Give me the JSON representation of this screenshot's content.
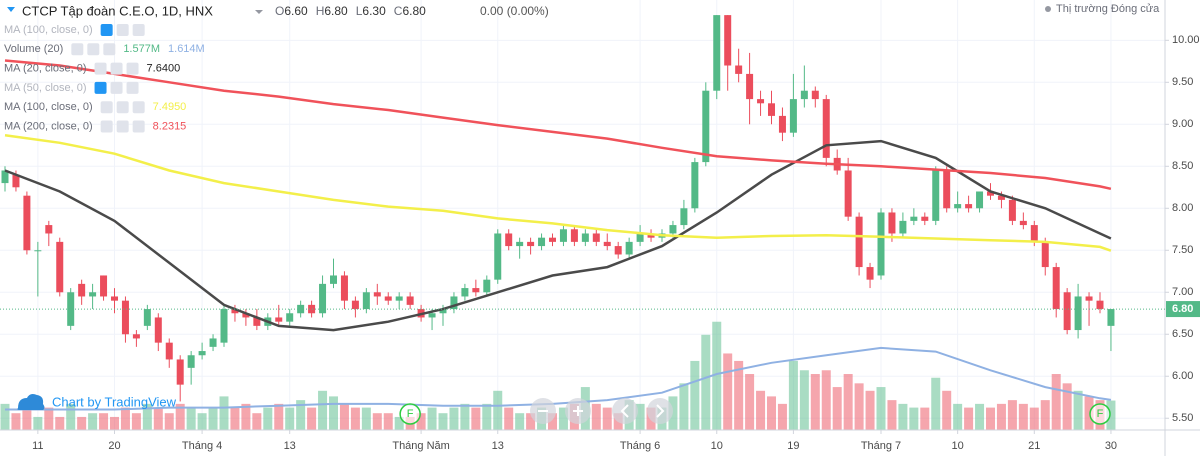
{
  "chart_data": {
    "type": "candlestick",
    "title": "CTCP Tập đoàn C.E.O, 1D, HNX",
    "quote": [
      {
        "label": "O",
        "value": "6.60"
      },
      {
        "label": "H",
        "value": "6.80"
      },
      {
        "label": "L",
        "value": "6.30"
      },
      {
        "label": "C",
        "value": "6.80"
      }
    ],
    "change": "0.00 (0.00%)",
    "status": "Thị trường Đóng cửa",
    "branding": "Chart by TradingView",
    "up_color": "#53b987",
    "down_color": "#eb4d5c",
    "open": [
      8.3,
      8.4,
      8.15,
      7.5,
      7.8,
      7.6,
      6.6,
      7.1,
      6.95,
      7.2,
      6.95,
      6.9,
      6.5,
      6.6,
      6.7,
      6.4,
      6.2,
      6.1,
      6.25,
      6.35,
      6.4,
      6.8,
      6.75,
      6.7,
      6.6,
      6.7,
      6.65,
      6.75,
      6.85,
      6.75,
      7.1,
      7.2,
      6.9,
      6.8,
      7.0,
      6.95,
      6.9,
      6.95,
      6.8,
      6.7,
      6.75,
      6.8,
      6.95,
      7.05,
      7.0,
      7.15,
      7.7,
      7.55,
      7.6,
      7.55,
      7.65,
      7.6,
      7.75,
      7.6,
      7.7,
      7.6,
      7.55,
      7.45,
      7.6,
      7.7,
      7.65,
      7.7,
      7.8,
      8.0,
      8.55,
      9.4,
      10.3,
      9.7,
      9.6,
      9.3,
      9.25,
      9.1,
      8.9,
      9.3,
      9.4,
      9.3,
      8.6,
      8.45,
      7.9,
      7.3,
      7.2,
      7.95,
      7.7,
      7.85,
      7.9,
      7.85,
      8.45,
      8.0,
      8.05,
      8.0,
      8.2,
      8.15,
      8.1,
      7.85,
      7.8,
      7.6,
      7.3,
      7.0,
      6.55,
      6.95,
      6.9,
      6.6
    ],
    "high": [
      8.5,
      8.45,
      8.2,
      7.6,
      7.85,
      7.65,
      7.05,
      7.15,
      7.1,
      7.2,
      7.05,
      6.95,
      6.55,
      6.85,
      6.75,
      6.45,
      6.25,
      6.3,
      6.4,
      6.5,
      6.85,
      6.85,
      6.8,
      6.8,
      6.75,
      6.85,
      6.8,
      6.9,
      6.9,
      7.2,
      7.4,
      7.25,
      6.95,
      7.05,
      7.1,
      7.0,
      7.0,
      7.0,
      6.85,
      6.8,
      6.85,
      7.0,
      7.1,
      7.15,
      7.2,
      7.75,
      7.75,
      7.65,
      7.65,
      7.7,
      7.7,
      7.8,
      7.8,
      7.75,
      7.75,
      7.7,
      7.6,
      7.65,
      7.8,
      7.75,
      7.75,
      7.85,
      8.1,
      8.6,
      9.5,
      10.3,
      10.3,
      9.9,
      9.85,
      9.4,
      9.4,
      9.2,
      9.6,
      9.7,
      9.45,
      9.35,
      8.7,
      8.6,
      7.95,
      7.35,
      8.0,
      8.0,
      7.95,
      8.0,
      7.95,
      8.5,
      8.5,
      8.2,
      8.15,
      8.2,
      8.3,
      8.2,
      8.15,
      7.95,
      7.85,
      7.65,
      7.35,
      7.05,
      7.1,
      7.0,
      7.0,
      6.8
    ],
    "low": [
      8.2,
      8.2,
      7.45,
      6.95,
      7.55,
      6.95,
      6.55,
      6.85,
      6.8,
      6.9,
      6.75,
      6.4,
      6.35,
      6.55,
      6.3,
      6.1,
      5.7,
      5.9,
      6.2,
      6.3,
      6.35,
      6.65,
      6.6,
      6.55,
      6.55,
      6.6,
      6.6,
      6.7,
      6.7,
      6.7,
      7.05,
      6.8,
      6.7,
      6.75,
      6.85,
      6.85,
      6.8,
      6.8,
      6.65,
      6.55,
      6.6,
      6.75,
      6.9,
      6.95,
      6.95,
      7.1,
      7.5,
      7.4,
      7.45,
      7.5,
      7.55,
      7.55,
      7.55,
      7.55,
      7.55,
      7.5,
      7.4,
      7.4,
      7.55,
      7.6,
      7.6,
      7.65,
      7.75,
      7.95,
      8.5,
      9.3,
      9.4,
      9.5,
      9.0,
      9.1,
      9.0,
      8.8,
      8.85,
      9.2,
      9.2,
      8.5,
      8.4,
      7.85,
      7.2,
      7.05,
      7.15,
      7.6,
      7.65,
      7.8,
      7.8,
      7.8,
      7.95,
      7.95,
      7.95,
      7.95,
      8.1,
      8.0,
      7.8,
      7.75,
      7.55,
      7.2,
      6.7,
      6.5,
      6.45,
      6.6,
      6.75,
      6.3
    ],
    "close": [
      8.45,
      8.25,
      7.5,
      7.5,
      7.7,
      7.0,
      7.0,
      6.95,
      7.0,
      6.95,
      6.9,
      6.5,
      6.45,
      6.8,
      6.4,
      6.2,
      5.9,
      6.25,
      6.3,
      6.45,
      6.8,
      6.75,
      6.7,
      6.6,
      6.7,
      6.65,
      6.75,
      6.85,
      6.75,
      7.1,
      7.2,
      6.9,
      6.8,
      7.0,
      6.95,
      6.9,
      6.95,
      6.85,
      6.7,
      6.75,
      6.8,
      6.95,
      7.05,
      7.0,
      7.15,
      7.7,
      7.55,
      7.6,
      7.55,
      7.65,
      7.6,
      7.75,
      7.6,
      7.7,
      7.6,
      7.55,
      7.45,
      7.6,
      7.7,
      7.65,
      7.7,
      7.8,
      8.0,
      8.55,
      9.4,
      10.3,
      9.7,
      9.6,
      9.3,
      9.25,
      9.1,
      8.9,
      9.3,
      9.4,
      9.3,
      8.6,
      8.45,
      7.9,
      7.3,
      7.15,
      7.95,
      7.7,
      7.85,
      7.9,
      7.85,
      8.45,
      8.0,
      8.05,
      8.0,
      8.2,
      8.15,
      8.1,
      7.85,
      7.8,
      7.6,
      7.3,
      6.8,
      6.55,
      6.95,
      6.9,
      6.8,
      6.8
    ],
    "volume": [
      1.4,
      0.9,
      1.2,
      0.7,
      1.2,
      0.7,
      1.4,
      0.7,
      0.9,
      0.9,
      0.7,
      1.2,
      0.9,
      1.4,
      1.2,
      0.9,
      1.4,
      1.2,
      0.9,
      1.2,
      1.8,
      1.2,
      1.4,
      0.9,
      1.2,
      1.4,
      1.2,
      1.6,
      1.2,
      2.1,
      1.8,
      1.4,
      1.2,
      1.2,
      0.9,
      0.9,
      0.7,
      0.7,
      0.9,
      1.2,
      0.9,
      1.2,
      1.4,
      1.2,
      1.4,
      2.1,
      1.2,
      0.9,
      0.9,
      1.2,
      0.9,
      1.2,
      1.4,
      2.3,
      1.4,
      1.2,
      0.9,
      1.6,
      1.4,
      1.2,
      1.2,
      1.8,
      2.5,
      3.7,
      5.1,
      5.8,
      4.1,
      3.7,
      3.0,
      2.1,
      1.8,
      1.4,
      3.7,
      3.2,
      3.0,
      3.2,
      2.3,
      3.0,
      2.5,
      2.1,
      2.3,
      1.6,
      1.4,
      1.2,
      1.2,
      2.8,
      2.1,
      1.4,
      1.2,
      1.4,
      1.2,
      1.4,
      1.6,
      1.4,
      1.2,
      1.6,
      3.0,
      2.5,
      2.1,
      1.8,
      1.6,
      1.577
    ],
    "volume_label": "1.577M",
    "vlim": [
      0,
      7.5
    ],
    "ylim": [
      5.36,
      10.48
    ],
    "yticks": [
      {
        "value": 5.5,
        "label": "5.50"
      },
      {
        "value": 6,
        "label": "6.00"
      },
      {
        "value": 6.5,
        "label": "6.50"
      },
      {
        "value": 7,
        "label": "7.00"
      },
      {
        "value": 7.5,
        "label": "7.50"
      },
      {
        "value": 8,
        "label": "8.00"
      },
      {
        "value": 8.5,
        "label": "8.50"
      },
      {
        "value": 9,
        "label": "9.00"
      },
      {
        "value": 9.5,
        "label": "9.50"
      },
      {
        "value": 10,
        "label": "10.00"
      }
    ],
    "xticks": [
      {
        "value": 3,
        "label": "11"
      },
      {
        "value": 10,
        "label": "20"
      },
      {
        "value": 18,
        "label": "Tháng 4"
      },
      {
        "value": 26,
        "label": "13"
      },
      {
        "value": 38,
        "label": "Tháng Năm"
      },
      {
        "value": 45,
        "label": "13"
      },
      {
        "value": 58,
        "label": "Tháng 6"
      },
      {
        "value": 65,
        "label": "10"
      },
      {
        "value": 72,
        "label": "19"
      },
      {
        "value": 80,
        "label": "Tháng 7"
      },
      {
        "value": 87,
        "label": "10"
      },
      {
        "value": 94,
        "label": "21"
      },
      {
        "value": 101,
        "label": "30"
      }
    ],
    "last_price": {
      "value": 6.8,
      "label": "6.80"
    },
    "grid": true,
    "events": [
      {
        "x": 37,
        "label": "F"
      },
      {
        "x": 100,
        "label": "F"
      }
    ],
    "indicators": [
      {
        "name": "MA (100, close, 0)",
        "visible": false
      },
      {
        "name": "Volume (20)",
        "visible": true,
        "pane": "volume",
        "color": "#8fb1e3",
        "value_label": "1.614M",
        "x": [
          0,
          5,
          10,
          15,
          20,
          25,
          30,
          35,
          40,
          45,
          50,
          55,
          60,
          65,
          70,
          75,
          80,
          85,
          90,
          95,
          100,
          101
        ],
        "values": [
          1.1,
          1.1,
          1.1,
          1.2,
          1.2,
          1.3,
          1.4,
          1.4,
          1.3,
          1.3,
          1.4,
          1.6,
          2.0,
          3.0,
          3.6,
          4.0,
          4.4,
          4.2,
          3.2,
          2.3,
          1.7,
          1.614
        ]
      },
      {
        "name": "MA (20, close, 0)",
        "visible": true,
        "pane": "price",
        "color": "#4a4a4a",
        "value_label": "7.6400",
        "x": [
          0,
          5,
          10,
          15,
          20,
          25,
          30,
          35,
          40,
          45,
          50,
          55,
          60,
          65,
          70,
          75,
          80,
          85,
          90,
          95,
          100,
          101
        ],
        "values": [
          8.45,
          8.2,
          7.85,
          7.35,
          6.85,
          6.6,
          6.55,
          6.65,
          6.8,
          7.0,
          7.2,
          7.3,
          7.55,
          7.95,
          8.4,
          8.75,
          8.8,
          8.6,
          8.2,
          8.0,
          7.7,
          7.64
        ]
      },
      {
        "name": "MA (50, close, 0)",
        "visible": false
      },
      {
        "name": "MA (100, close, 0)",
        "visible": true,
        "pane": "price",
        "color": "#f3ef4a",
        "value_label": "7.4950",
        "x": [
          0,
          5,
          10,
          15,
          20,
          25,
          30,
          35,
          40,
          45,
          50,
          55,
          60,
          65,
          70,
          75,
          80,
          85,
          90,
          95,
          100,
          101
        ],
        "values": [
          8.87,
          8.78,
          8.65,
          8.45,
          8.3,
          8.2,
          8.1,
          8.02,
          7.97,
          7.88,
          7.82,
          7.74,
          7.68,
          7.65,
          7.67,
          7.68,
          7.66,
          7.64,
          7.62,
          7.6,
          7.54,
          7.495
        ]
      },
      {
        "name": "MA (200, close, 0)",
        "visible": true,
        "pane": "price",
        "color": "#f0525a",
        "value_label": "8.2315",
        "x": [
          0,
          5,
          10,
          15,
          20,
          25,
          30,
          35,
          40,
          45,
          50,
          55,
          60,
          65,
          70,
          75,
          80,
          85,
          90,
          95,
          100,
          101
        ],
        "values": [
          9.76,
          9.7,
          9.6,
          9.5,
          9.4,
          9.33,
          9.24,
          9.17,
          9.08,
          8.99,
          8.91,
          8.83,
          8.72,
          8.62,
          8.57,
          8.53,
          8.5,
          8.46,
          8.42,
          8.36,
          8.26,
          8.2315
        ]
      }
    ]
  }
}
